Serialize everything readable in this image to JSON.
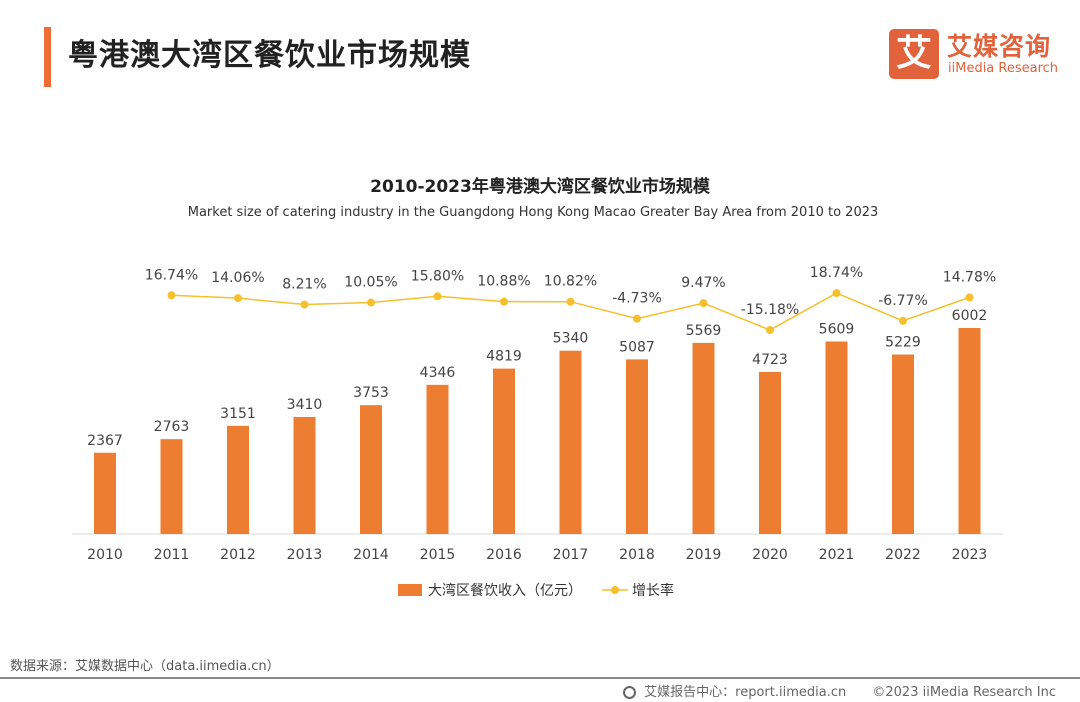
{
  "header": {
    "title": "粤港澳大湾区餐饮业市场规模"
  },
  "logo": {
    "mark": "艾",
    "cn": "艾媒咨询",
    "en": "iiMedia Research",
    "color": "#e2623c"
  },
  "chart_data": {
    "type": "bar+line",
    "title": "2010-2023年粤港澳大湾区餐饮业市场规模",
    "subtitle": "Market size of catering industry in the Guangdong Hong Kong Macao Greater Bay Area from 2010 to 2023",
    "categories": [
      "2010",
      "2011",
      "2012",
      "2013",
      "2014",
      "2015",
      "2016",
      "2017",
      "2018",
      "2019",
      "2020",
      "2021",
      "2022",
      "2023"
    ],
    "series": [
      {
        "name": "大湾区餐饮收入（亿元）",
        "type": "bar",
        "color": "#ed7d31",
        "values": [
          2367,
          2763,
          3151,
          3410,
          3753,
          4346,
          4819,
          5340,
          5087,
          5569,
          4723,
          5609,
          5229,
          6002
        ],
        "labels": [
          "2367",
          "2763",
          "3151",
          "3410",
          "3753",
          "4346",
          "4819",
          "5340",
          "5087",
          "5569",
          "4723",
          "5609",
          "5229",
          "6002"
        ]
      },
      {
        "name": "增长率",
        "type": "line",
        "color": "#f5c02c",
        "values": [
          16.74,
          14.06,
          8.21,
          10.05,
          15.8,
          10.88,
          10.82,
          -4.73,
          9.47,
          -15.18,
          18.74,
          -6.77,
          14.78
        ],
        "x": [
          "2011",
          "2012",
          "2013",
          "2014",
          "2015",
          "2016",
          "2017",
          "2018",
          "2019",
          "2020",
          "2021",
          "2022",
          "2023"
        ],
        "labels": [
          "16.74%",
          "14.06%",
          "8.21%",
          "10.05%",
          "15.80%",
          "10.88%",
          "10.82%",
          "-4.73%",
          "9.47%",
          "-15.18%",
          "18.74%",
          "-6.77%",
          "14.78%"
        ]
      }
    ],
    "legend": "bottom",
    "grid": false
  },
  "source": "数据来源：艾媒数据中心（data.iimedia.cn）",
  "footer": {
    "report": "艾媒报告中心：report.iimedia.cn",
    "copyright": "©2023  iiMedia Research Inc"
  }
}
